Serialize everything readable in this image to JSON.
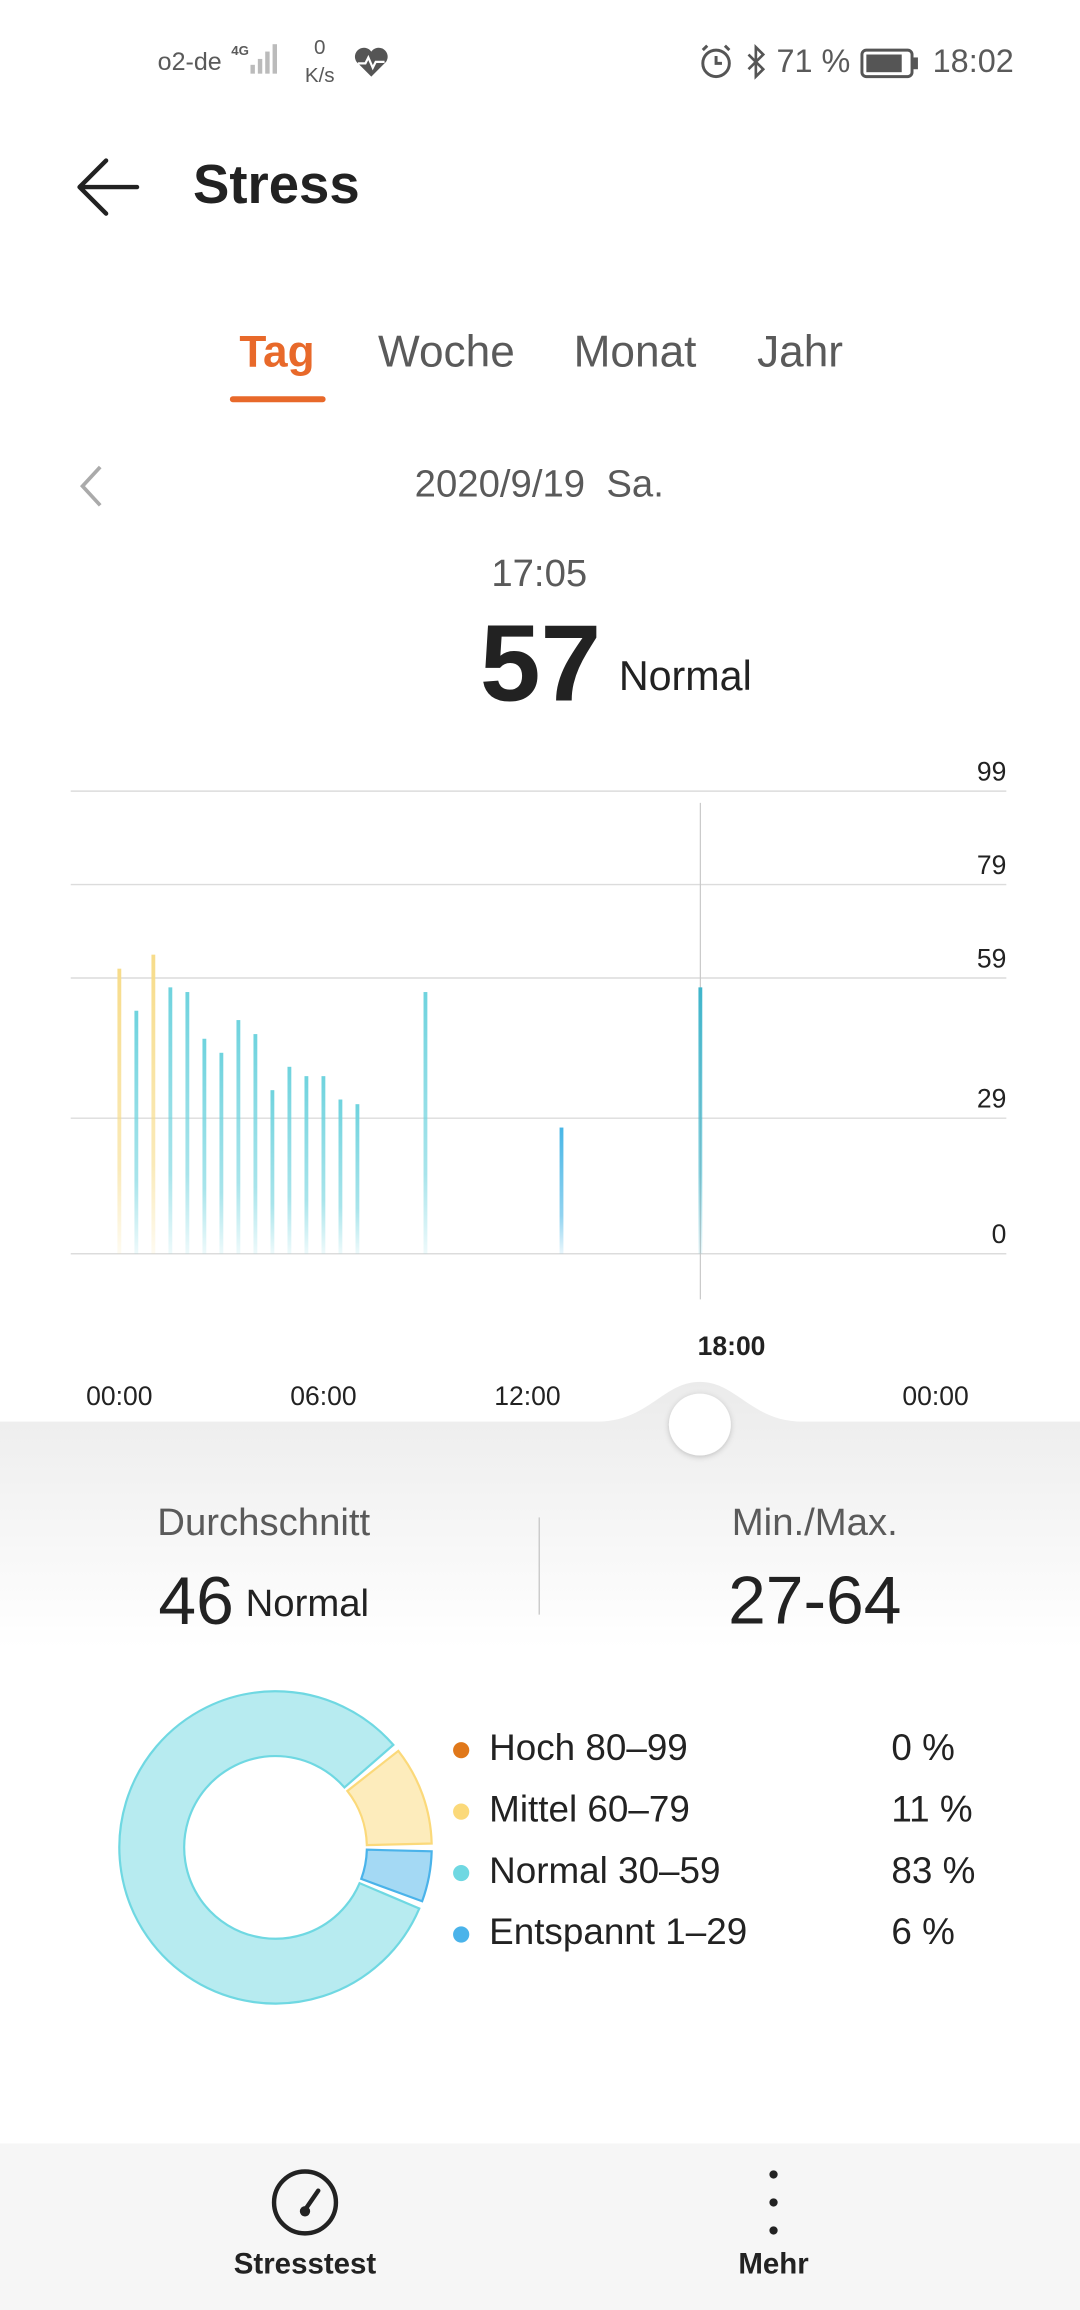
{
  "status_bar": {
    "carrier": "o2-de",
    "network": "4G",
    "speed_value": "0",
    "speed_unit": "K/s",
    "battery": "71 %",
    "time": "18:02"
  },
  "header": {
    "title": "Stress"
  },
  "tabs": [
    "Tag",
    "Woche",
    "Monat",
    "Jahr"
  ],
  "date": "2020/9/19  Sa.",
  "selection": {
    "time": "17:05",
    "value": 57,
    "level": "Normal"
  },
  "chart_data": [
    {
      "type": "bar",
      "x": [
        0,
        0.5,
        1,
        1.5,
        2,
        2.5,
        3,
        3.5,
        4,
        4.5,
        5,
        5.5,
        6,
        6.5,
        7,
        9,
        13,
        17.083
      ],
      "values": [
        61,
        52,
        64,
        57,
        56,
        46,
        43,
        50,
        47,
        35,
        40,
        38,
        38,
        33,
        32,
        56,
        27,
        57
      ],
      "colors": [
        "#f7dc8a",
        "#6fd3de",
        "#f7dc8a",
        "#6fd3de",
        "#6fd3de",
        "#6fd3de",
        "#6fd3de",
        "#6fd3de",
        "#6fd3de",
        "#6fd3de",
        "#6fd3de",
        "#6fd3de",
        "#6fd3de",
        "#6fd3de",
        "#6fd3de",
        "#6fd3de",
        "#48b6e6",
        "#3fb5cb"
      ],
      "xlim": [
        0,
        24
      ],
      "xticks": [
        {
          "value": 0,
          "label": "00:00"
        },
        {
          "value": 6,
          "label": "06:00"
        },
        {
          "value": 12,
          "label": "12:00"
        },
        {
          "value": 18,
          "label": "18:00"
        },
        {
          "value": 24,
          "label": "00:00"
        }
      ],
      "ylim": [
        0,
        99
      ],
      "yticks": [
        0,
        29,
        59,
        79,
        99
      ],
      "grid": true
    },
    {
      "type": "pie",
      "categories": [
        "Hoch 80–99",
        "Mittel 60–79",
        "Normal 30–59",
        "Entspannt 1–29"
      ],
      "values": [
        0,
        11,
        83,
        6
      ],
      "value_labels": [
        "0 %",
        "11 %",
        "83 %",
        "6 %"
      ],
      "colors": [
        "#e0781a",
        "#fbd97a",
        "#6fd8e2",
        "#4ab3ea"
      ]
    }
  ],
  "summary": {
    "average": {
      "label": "Durchschnitt",
      "value": 46,
      "level": "Normal"
    },
    "range": {
      "label": "Min./Max.",
      "value": "27-64"
    }
  },
  "bottom_nav": [
    "Stresstest",
    "Mehr"
  ]
}
